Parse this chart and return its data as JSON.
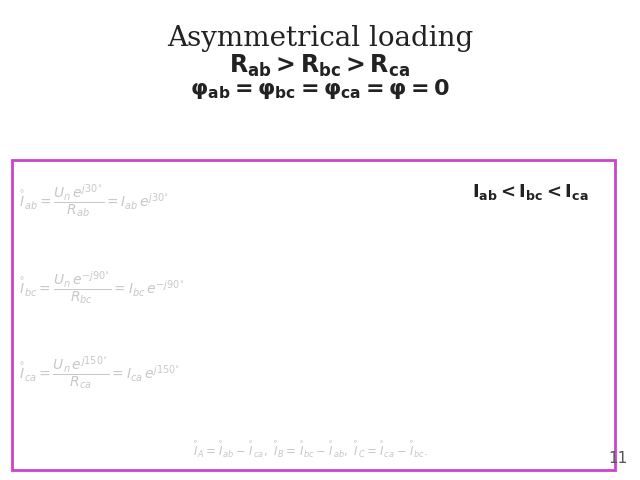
{
  "title": "Asymmetrical loading",
  "box_color": "#CC44CC",
  "background_color": "#ffffff",
  "title_fontsize": 20,
  "ghost_color": "#c8c8c8",
  "slide_number": "11",
  "fig_width": 6.4,
  "fig_height": 4.8,
  "dpi": 100
}
